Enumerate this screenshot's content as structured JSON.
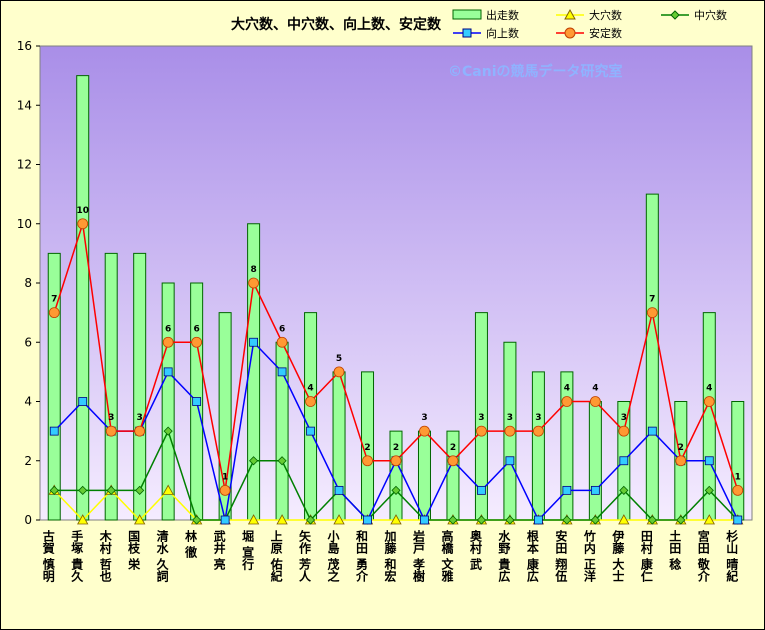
{
  "chart_data": {
    "type": "bar",
    "title": "大穴数、中穴数、向上数、安定数",
    "watermark": "©Caniの競馬データ研究室",
    "xlabel": "",
    "ylabel": "",
    "ylim": [
      0,
      16
    ],
    "yticks": [
      0,
      2,
      4,
      6,
      8,
      10,
      12,
      14,
      16
    ],
    "grid": false,
    "legend_position": "top-right",
    "categories": [
      "古賀 慎明",
      "手塚 貴久",
      "木村 哲也",
      "国枝 栄",
      "清水 久詞",
      "林 徹",
      "武井 亮",
      "堀 宣行",
      "上原 佑紀",
      "矢作 芳人",
      "小島 茂之",
      "和田 勇介",
      "加藤 和宏",
      "岩戸 孝樹",
      "高橋 文雅",
      "奥村 武",
      "水野 貴広",
      "根本 康広",
      "安田 翔伍",
      "竹内 正洋",
      "伊藤 大士",
      "田村 康仁",
      "土田 稔",
      "宮田 敬介",
      "杉山 晴紀"
    ],
    "series": [
      {
        "name": "出走数",
        "type": "bar",
        "color": "#99ff99",
        "values": [
          9,
          15,
          9,
          9,
          8,
          8,
          7,
          10,
          6,
          7,
          5,
          5,
          3,
          3,
          3,
          7,
          6,
          5,
          5,
          4,
          4,
          11,
          4,
          7,
          4
        ]
      },
      {
        "name": "大穴数",
        "type": "line",
        "color": "#ffff00",
        "values": [
          1,
          0,
          1,
          0,
          1,
          0,
          0,
          0,
          0,
          0,
          0,
          0,
          0,
          0,
          0,
          0,
          0,
          0,
          0,
          0,
          0,
          0,
          0,
          0,
          0
        ]
      },
      {
        "name": "中穴数",
        "type": "line",
        "color": "#008000",
        "values": [
          1,
          1,
          1,
          1,
          3,
          0,
          0,
          2,
          2,
          0,
          1,
          0,
          1,
          0,
          0,
          0,
          0,
          0,
          0,
          0,
          1,
          0,
          0,
          1,
          0
        ]
      },
      {
        "name": "向上数",
        "type": "line",
        "color": "#0000ff",
        "values": [
          3,
          4,
          3,
          3,
          5,
          4,
          0,
          6,
          5,
          3,
          1,
          0,
          2,
          0,
          2,
          1,
          2,
          0,
          1,
          1,
          2,
          3,
          2,
          2,
          0
        ]
      },
      {
        "name": "安定数",
        "type": "line",
        "color": "#ff0000",
        "values": [
          7,
          10,
          3,
          3,
          6,
          6,
          1,
          8,
          6,
          4,
          5,
          2,
          2,
          3,
          2,
          3,
          3,
          3,
          4,
          4,
          3,
          7,
          2,
          4,
          1
        ]
      }
    ],
    "data_labels": [
      "7",
      "10",
      "3",
      "3",
      "6",
      "6",
      "1",
      "8",
      "6",
      "4",
      "5",
      "2",
      "2",
      "3",
      "2",
      "3",
      "3",
      "3",
      "4",
      "4",
      "3",
      "7",
      "2",
      "4",
      "1"
    ]
  }
}
